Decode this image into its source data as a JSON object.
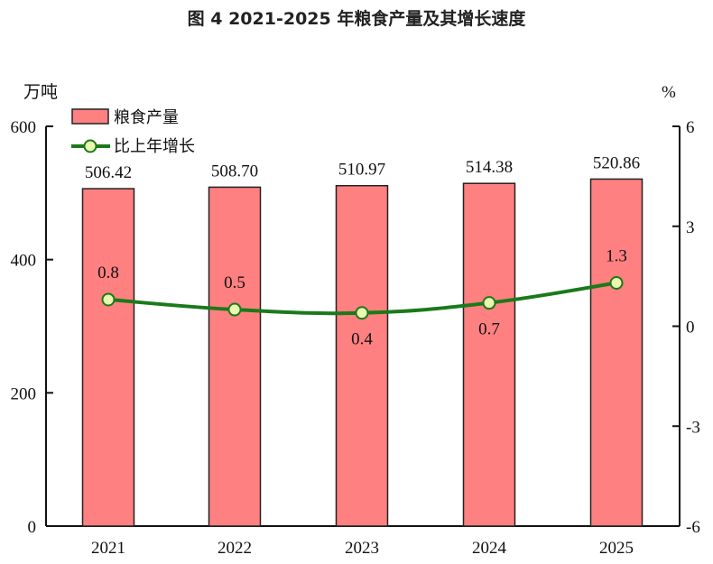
{
  "chart_data": {
    "type": "bar+line",
    "title": "图 4   2021-2025 年粮食产量及其增长速度",
    "categories": [
      "2021",
      "2022",
      "2023",
      "2024",
      "2025"
    ],
    "series": [
      {
        "name": "粮食产量",
        "type": "bar",
        "axis": "left",
        "values": [
          506.42,
          508.7,
          510.97,
          514.38,
          520.86
        ],
        "labels": [
          "506.42",
          "508.70",
          "510.97",
          "514.38",
          "520.86"
        ],
        "color": "#ff8080"
      },
      {
        "name": "比上年增长",
        "type": "line",
        "axis": "right",
        "values": [
          0.8,
          0.5,
          0.4,
          0.7,
          1.3
        ],
        "labels": [
          "0.8",
          "0.5",
          "0.4",
          "0.7",
          "1.3"
        ],
        "color": "#1a7a1a",
        "marker_fill": "#eaf8b0"
      }
    ],
    "left_axis": {
      "label": "万吨",
      "range": [
        0,
        600
      ],
      "ticks": [
        "0",
        "200",
        "400",
        "600"
      ]
    },
    "right_axis": {
      "label": "%",
      "range": [
        -6,
        6
      ],
      "ticks": [
        "-6",
        "-3",
        "0",
        "3",
        "6"
      ]
    },
    "grid": false,
    "legend": "top-left"
  }
}
